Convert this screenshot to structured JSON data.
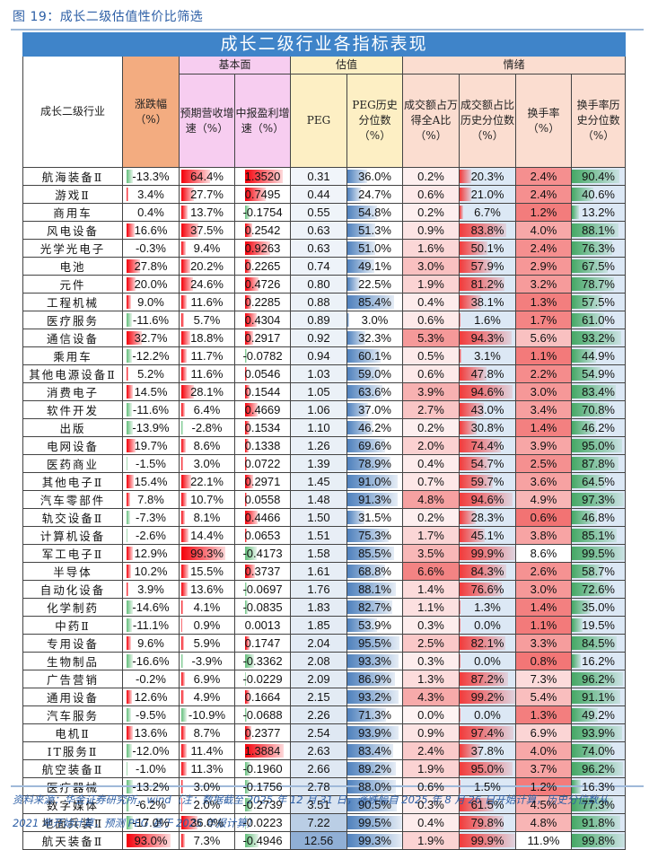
{
  "figure_title": "图 19：成长二级估值性价比筛选",
  "table_title": "成长二级行业各指标表现",
  "groups": {
    "fundamental": "基本面",
    "valuation": "估值",
    "sentiment": "情绪"
  },
  "columns": {
    "industry": "成长二级行业",
    "chg": "涨跌幅（%）",
    "rev": "预期营收增速（%）",
    "profit": "中报盈利增速（%）",
    "peg": "PEG",
    "peg_pct": "PEG历史分位数（%）",
    "turnover_share": "成交额占万得全A比（%）",
    "turnover_share_pct": "成交额占比历史分位数（%）",
    "turnover_rate": "换手率（%）",
    "turnover_rate_pct": "换手率历史分位数（%）"
  },
  "colors": {
    "banner": "#3f84c9",
    "chg_header": "#f3ac80",
    "fund_header": "#f7cdf0",
    "val_header": "#fdefc4",
    "sent_header": "#fbddd0",
    "bar_red": "#f4000a",
    "bar_green": "#63be7b",
    "bar_blue": "#4f81bd"
  },
  "footer": {
    "line1": "资料来源：华金证券研究所，wind（注：数据截至 2025 年 12 月 31 日，涨跌幅自 2025 年 8 月 26 日开始计算，历史分位数从",
    "line2": "2021 年开始计算，预测 PEG 基于 2025 年报计算）"
  },
  "chart_data": {
    "type": "table",
    "title": "成长二级行业各指标表现",
    "headers": [
      "成长二级行业",
      "涨跌幅(%)",
      "预期营收增速(%)",
      "中报盈利增速(%)",
      "PEG",
      "PEG历史分位数(%)",
      "成交额占万得全A比(%)",
      "成交额占比历史分位数(%)",
      "换手率(%)",
      "换手率历史分位数(%)"
    ],
    "rows": [
      [
        "航海装备Ⅱ",
        "-13.3%",
        "64.4%",
        "1.3520",
        "0.31",
        "36.0%",
        "0.2%",
        "20.3%",
        "2.4%",
        "90.4%"
      ],
      [
        "游戏Ⅱ",
        "3.4%",
        "27.7%",
        "0.7495",
        "0.44",
        "24.7%",
        "0.6%",
        "21.0%",
        "2.4%",
        "40.6%"
      ],
      [
        "商用车",
        "0.4%",
        "13.7%",
        "-0.1754",
        "0.55",
        "54.8%",
        "0.2%",
        "6.7%",
        "1.2%",
        "13.2%"
      ],
      [
        "风电设备",
        "16.6%",
        "37.5%",
        "0.2542",
        "0.63",
        "51.3%",
        "0.9%",
        "83.8%",
        "4.0%",
        "88.1%"
      ],
      [
        "光学光电子",
        "-0.3%",
        "9.4%",
        "0.9263",
        "0.63",
        "51.0%",
        "1.6%",
        "50.1%",
        "2.4%",
        "76.3%"
      ],
      [
        "电池",
        "27.8%",
        "20.2%",
        "0.2265",
        "0.74",
        "49.1%",
        "3.0%",
        "57.9%",
        "2.9%",
        "67.5%"
      ],
      [
        "元件",
        "20.0%",
        "24.6%",
        "0.4726",
        "0.80",
        "22.5%",
        "1.9%",
        "81.2%",
        "3.2%",
        "78.7%"
      ],
      [
        "工程机械",
        "9.0%",
        "11.6%",
        "0.2285",
        "0.88",
        "85.4%",
        "0.4%",
        "38.1%",
        "1.3%",
        "57.5%"
      ],
      [
        "医疗服务",
        "-11.6%",
        "5.7%",
        "0.4304",
        "0.89",
        "3.0%",
        "0.6%",
        "1.6%",
        "1.7%",
        "61.0%"
      ],
      [
        "通信设备",
        "32.7%",
        "18.8%",
        "0.2917",
        "0.92",
        "32.3%",
        "5.3%",
        "94.3%",
        "5.6%",
        "93.2%"
      ],
      [
        "乘用车",
        "-12.2%",
        "11.7%",
        "-0.0782",
        "0.94",
        "60.1%",
        "0.5%",
        "3.1%",
        "1.1%",
        "44.9%"
      ],
      [
        "其他电源设备Ⅱ",
        "5.2%",
        "11.6%",
        "0.0546",
        "1.03",
        "59.0%",
        "0.6%",
        "47.8%",
        "2.2%",
        "54.9%"
      ],
      [
        "消费电子",
        "14.5%",
        "28.1%",
        "0.1544",
        "1.05",
        "63.6%",
        "3.9%",
        "94.6%",
        "3.0%",
        "83.4%"
      ],
      [
        "软件开发",
        "-11.6%",
        "6.4%",
        "0.4669",
        "1.06",
        "37.0%",
        "2.7%",
        "43.0%",
        "3.4%",
        "70.8%"
      ],
      [
        "出版",
        "-13.9%",
        "-2.8%",
        "0.1534",
        "1.10",
        "46.2%",
        "0.2%",
        "30.8%",
        "1.4%",
        "46.2%"
      ],
      [
        "电网设备",
        "19.7%",
        "8.6%",
        "0.1338",
        "1.26",
        "69.6%",
        "2.0%",
        "74.4%",
        "3.9%",
        "95.0%"
      ],
      [
        "医药商业",
        "-1.5%",
        "3.0%",
        "0.0722",
        "1.39",
        "78.9%",
        "0.4%",
        "54.7%",
        "2.5%",
        "87.8%"
      ],
      [
        "其他电子Ⅱ",
        "15.4%",
        "22.1%",
        "0.2971",
        "1.45",
        "91.0%",
        "0.7%",
        "59.7%",
        "3.6%",
        "64.5%"
      ],
      [
        "汽车零部件",
        "7.8%",
        "10.7%",
        "0.0558",
        "1.48",
        "91.3%",
        "4.8%",
        "94.6%",
        "4.9%",
        "97.3%"
      ],
      [
        "轨交设备Ⅱ",
        "-7.3%",
        "8.1%",
        "0.4466",
        "1.50",
        "31.5%",
        "0.2%",
        "28.3%",
        "0.6%",
        "46.8%"
      ],
      [
        "计算机设备",
        "-2.6%",
        "14.4%",
        "0.0653",
        "1.51",
        "75.3%",
        "1.7%",
        "45.1%",
        "3.8%",
        "85.1%"
      ],
      [
        "军工电子Ⅱ",
        "12.9%",
        "99.3%",
        "-0.4173",
        "1.58",
        "85.5%",
        "3.5%",
        "99.9%",
        "8.6%",
        "99.5%"
      ],
      [
        "半导体",
        "10.2%",
        "15.5%",
        "0.3737",
        "1.61",
        "68.8%",
        "6.6%",
        "84.3%",
        "2.6%",
        "58.7%"
      ],
      [
        "自动化设备",
        "3.9%",
        "13.6%",
        "-0.0697",
        "1.76",
        "88.1%",
        "1.4%",
        "76.6%",
        "3.0%",
        "72.6%"
      ],
      [
        "化学制药",
        "-14.6%",
        "4.1%",
        "-0.0835",
        "1.83",
        "82.7%",
        "1.1%",
        "1.3%",
        "1.4%",
        "35.0%"
      ],
      [
        "中药Ⅱ",
        "-11.1%",
        "0.9%",
        "0.0013",
        "1.85",
        "53.9%",
        "0.3%",
        "0.0%",
        "1.1%",
        "19.5%"
      ],
      [
        "专用设备",
        "9.6%",
        "5.9%",
        "0.1747",
        "2.04",
        "95.5%",
        "2.5%",
        "82.1%",
        "3.3%",
        "84.5%"
      ],
      [
        "生物制品",
        "-16.6%",
        "-3.9%",
        "-0.3362",
        "2.08",
        "93.3%",
        "0.3%",
        "0.0%",
        "0.8%",
        "16.2%"
      ],
      [
        "广告营销",
        "-0.2%",
        "6.9%",
        "-0.0229",
        "2.09",
        "86.9%",
        "1.3%",
        "87.2%",
        "7.3%",
        "96.2%"
      ],
      [
        "通用设备",
        "12.6%",
        "4.9%",
        "0.1664",
        "2.15",
        "93.2%",
        "4.3%",
        "99.2%",
        "5.4%",
        "91.1%"
      ],
      [
        "汽车服务",
        "-9.5%",
        "-10.9%",
        "-0.0688",
        "2.26",
        "71.3%",
        "0.0%",
        "0.0%",
        "1.3%",
        "49.2%"
      ],
      [
        "电机Ⅱ",
        "13.6%",
        "8.7%",
        "0.2377",
        "2.54",
        "93.9%",
        "0.9%",
        "97.4%",
        "6.9%",
        "93.9%"
      ],
      [
        "IT服务Ⅱ",
        "-12.0%",
        "11.4%",
        "1.3884",
        "2.63",
        "83.4%",
        "2.4%",
        "37.8%",
        "4.0%",
        "74.0%"
      ],
      [
        "航空装备Ⅱ",
        "-1.0%",
        "11.3%",
        "-0.1960",
        "2.66",
        "89.2%",
        "1.9%",
        "95.0%",
        "3.7%",
        "96.2%"
      ],
      [
        "医疗器械",
        "-13.2%",
        "3.0%",
        "-0.1756",
        "2.78",
        "88.0%",
        "0.6%",
        "1.5%",
        "1.2%",
        "16.3%"
      ],
      [
        "数字媒体",
        "-6.2%",
        "2.0%",
        "-0.2739",
        "3.51",
        "90.5%",
        "0.3%",
        "61.5%",
        "4.5%",
        "77.3%"
      ],
      [
        "地面兵装Ⅱ",
        "-17.0%",
        "36.0%",
        "-0.0223",
        "7.22",
        "99.5%",
        "0.4%",
        "79.8%",
        "4.8%",
        "91.8%"
      ],
      [
        "航天装备Ⅱ",
        "93.0%",
        "7.3%",
        "-0.4946",
        "12.56",
        "99.3%",
        "1.9%",
        "99.9%",
        "11.9%",
        "99.8%"
      ]
    ]
  }
}
